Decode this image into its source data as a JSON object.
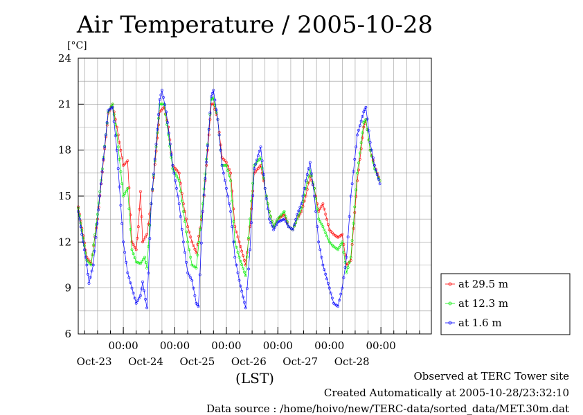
{
  "chart_data": {
    "type": "line",
    "title": "Air Temperature / 2005-10-28",
    "ylabel": "[°C]",
    "xlabel": "(LST)",
    "ylim": [
      6,
      24
    ],
    "yticks": [
      6,
      9,
      12,
      15,
      18,
      21,
      24
    ],
    "xlim": [
      "2005-10-22T03:00",
      "2005-10-28T23:30"
    ],
    "day_labels": [
      "Oct-23",
      "Oct-24",
      "Oct-25",
      "Oct-26",
      "Oct-27",
      "Oct-28"
    ],
    "time_label": "00:00",
    "grid": true,
    "legend_position": "bottom-right outside",
    "series": [
      {
        "name": "at 29.5 m",
        "color": "#ff0000",
        "points": [
          [
            "2005-10-22T03:00",
            14.3
          ],
          [
            "2005-10-22T07:00",
            11.0
          ],
          [
            "2005-10-22T09:00",
            10.6
          ],
          [
            "2005-10-22T12:00",
            13.5
          ],
          [
            "2005-10-22T17:00",
            20.4
          ],
          [
            "2005-10-22T19:00",
            21.0
          ],
          [
            "2005-10-22T21:00",
            19.5
          ],
          [
            "2005-10-23T00:00",
            17.0
          ],
          [
            "2005-10-23T02:00",
            17.3
          ],
          [
            "2005-10-23T04:00",
            12.0
          ],
          [
            "2005-10-23T06:00",
            11.5
          ],
          [
            "2005-10-23T07:00",
            13.0
          ],
          [
            "2005-10-23T08:00",
            15.3
          ],
          [
            "2005-10-23T09:00",
            12.0
          ],
          [
            "2005-10-23T11:00",
            12.5
          ],
          [
            "2005-10-23T13:00",
            14.5
          ],
          [
            "2005-10-23T17:00",
            20.5
          ],
          [
            "2005-10-23T19:00",
            20.8
          ],
          [
            "2005-10-23T21:00",
            19.5
          ],
          [
            "2005-10-23T23:00",
            17.0
          ],
          [
            "2005-10-24T02:00",
            16.5
          ],
          [
            "2005-10-24T04:00",
            14.5
          ],
          [
            "2005-10-24T06:00",
            13.0
          ],
          [
            "2005-10-24T08:00",
            12.0
          ],
          [
            "2005-10-24T10:00",
            11.3
          ],
          [
            "2005-10-24T13:00",
            14.0
          ],
          [
            "2005-10-24T17:00",
            21.0
          ],
          [
            "2005-10-24T18:00",
            21.0
          ],
          [
            "2005-10-24T20:00",
            20.0
          ],
          [
            "2005-10-24T22:00",
            17.5
          ],
          [
            "2005-10-25T00:00",
            17.2
          ],
          [
            "2005-10-25T02:00",
            16.5
          ],
          [
            "2005-10-25T04:00",
            13.0
          ],
          [
            "2005-10-25T06:00",
            12.0
          ],
          [
            "2005-10-25T09:00",
            10.5
          ],
          [
            "2005-10-25T11:00",
            13.0
          ],
          [
            "2005-10-25T13:00",
            16.5
          ],
          [
            "2005-10-25T16:00",
            17.0
          ],
          [
            "2005-10-25T18:00",
            15.5
          ],
          [
            "2005-10-25T20:00",
            14.0
          ],
          [
            "2005-10-25T22:00",
            13.0
          ],
          [
            "2005-10-26T00:00",
            13.5
          ],
          [
            "2005-10-26T03:00",
            13.8
          ],
          [
            "2005-10-26T05:00",
            13.0
          ],
          [
            "2005-10-26T07:00",
            12.8
          ],
          [
            "2005-10-26T09:00",
            13.5
          ],
          [
            "2005-10-26T11:00",
            14.0
          ],
          [
            "2005-10-26T13:00",
            15.0
          ],
          [
            "2005-10-26T15:00",
            16.3
          ],
          [
            "2005-10-26T17:00",
            15.5
          ],
          [
            "2005-10-26T19:00",
            14.0
          ],
          [
            "2005-10-26T21:00",
            14.5
          ],
          [
            "2005-10-27T00:00",
            12.8
          ],
          [
            "2005-10-27T02:00",
            12.5
          ],
          [
            "2005-10-27T04:00",
            12.3
          ],
          [
            "2005-10-27T06:00",
            12.5
          ],
          [
            "2005-10-27T08:00",
            10.5
          ],
          [
            "2005-10-27T10:00",
            10.8
          ],
          [
            "2005-10-27T13:00",
            16.0
          ],
          [
            "2005-10-27T16:00",
            19.5
          ],
          [
            "2005-10-27T17:00",
            20.0
          ],
          [
            "2005-10-27T19:00",
            18.0
          ],
          [
            "2005-10-27T21:00",
            17.0
          ],
          [
            "2005-10-27T23:30",
            16.0
          ]
        ]
      },
      {
        "name": "at 12.3 m",
        "color": "#00ee00",
        "points": [
          [
            "2005-10-22T03:00",
            14.2
          ],
          [
            "2005-10-22T07:00",
            10.8
          ],
          [
            "2005-10-22T09:00",
            10.5
          ],
          [
            "2005-10-22T12:00",
            13.8
          ],
          [
            "2005-10-22T17:00",
            20.5
          ],
          [
            "2005-10-22T19:00",
            21.0
          ],
          [
            "2005-10-22T21:00",
            19.0
          ],
          [
            "2005-10-23T00:00",
            15.0
          ],
          [
            "2005-10-23T02:00",
            15.5
          ],
          [
            "2005-10-23T04:00",
            11.5
          ],
          [
            "2005-10-23T06:00",
            10.7
          ],
          [
            "2005-10-23T08:00",
            10.6
          ],
          [
            "2005-10-23T10:00",
            11.0
          ],
          [
            "2005-10-23T11:00",
            10.3
          ],
          [
            "2005-10-23T13:00",
            14.5
          ],
          [
            "2005-10-23T17:00",
            21.0
          ],
          [
            "2005-10-23T19:00",
            21.0
          ],
          [
            "2005-10-23T21:00",
            19.0
          ],
          [
            "2005-10-23T23:00",
            16.8
          ],
          [
            "2005-10-24T02:00",
            16.0
          ],
          [
            "2005-10-24T04:00",
            14.0
          ],
          [
            "2005-10-24T06:00",
            12.0
          ],
          [
            "2005-10-24T08:00",
            10.5
          ],
          [
            "2005-10-24T10:00",
            10.3
          ],
          [
            "2005-10-24T13:00",
            14.5
          ],
          [
            "2005-10-24T17:00",
            21.3
          ],
          [
            "2005-10-24T18:00",
            21.4
          ],
          [
            "2005-10-24T20:00",
            20.0
          ],
          [
            "2005-10-24T22:00",
            17.0
          ],
          [
            "2005-10-25T00:00",
            17.0
          ],
          [
            "2005-10-25T02:00",
            16.0
          ],
          [
            "2005-10-25T04:00",
            12.0
          ],
          [
            "2005-10-25T06:00",
            11.0
          ],
          [
            "2005-10-25T09:00",
            9.8
          ],
          [
            "2005-10-25T11:00",
            13.5
          ],
          [
            "2005-10-25T13:00",
            17.0
          ],
          [
            "2005-10-25T16:00",
            17.5
          ],
          [
            "2005-10-25T18:00",
            15.5
          ],
          [
            "2005-10-25T20:00",
            14.0
          ],
          [
            "2005-10-25T22:00",
            13.0
          ],
          [
            "2005-10-26T00:00",
            13.5
          ],
          [
            "2005-10-26T03:00",
            14.0
          ],
          [
            "2005-10-26T05:00",
            13.0
          ],
          [
            "2005-10-26T07:00",
            12.8
          ],
          [
            "2005-10-26T09:00",
            13.5
          ],
          [
            "2005-10-26T11:00",
            14.2
          ],
          [
            "2005-10-26T13:00",
            15.5
          ],
          [
            "2005-10-26T15:00",
            16.7
          ],
          [
            "2005-10-26T17:00",
            15.5
          ],
          [
            "2005-10-26T19:00",
            13.5
          ],
          [
            "2005-10-26T21:00",
            13.0
          ],
          [
            "2005-10-27T00:00",
            12.0
          ],
          [
            "2005-10-27T02:00",
            11.7
          ],
          [
            "2005-10-27T04:00",
            11.5
          ],
          [
            "2005-10-27T06:00",
            12.0
          ],
          [
            "2005-10-27T08:00",
            10.0
          ],
          [
            "2005-10-27T10:00",
            11.0
          ],
          [
            "2005-10-27T13:00",
            16.5
          ],
          [
            "2005-10-27T16:00",
            19.8
          ],
          [
            "2005-10-27T17:00",
            20.0
          ],
          [
            "2005-10-27T19:00",
            18.0
          ],
          [
            "2005-10-27T21:00",
            16.8
          ],
          [
            "2005-10-27T23:30",
            16.0
          ]
        ]
      },
      {
        "name": "at 1.6 m",
        "color": "#0000ff",
        "points": [
          [
            "2005-10-22T03:00",
            14.0
          ],
          [
            "2005-10-22T07:00",
            10.5
          ],
          [
            "2005-10-22T08:00",
            9.3
          ],
          [
            "2005-10-22T10:00",
            10.5
          ],
          [
            "2005-10-22T13:00",
            15.0
          ],
          [
            "2005-10-22T17:00",
            20.6
          ],
          [
            "2005-10-22T19:00",
            20.8
          ],
          [
            "2005-10-22T21:00",
            18.0
          ],
          [
            "2005-10-23T00:00",
            12.0
          ],
          [
            "2005-10-23T02:00",
            10.0
          ],
          [
            "2005-10-23T04:00",
            9.0
          ],
          [
            "2005-10-23T06:00",
            8.0
          ],
          [
            "2005-10-23T08:00",
            8.5
          ],
          [
            "2005-10-23T09:00",
            9.4
          ],
          [
            "2005-10-23T11:00",
            7.7
          ],
          [
            "2005-10-23T13:00",
            14.5
          ],
          [
            "2005-10-23T17:00",
            21.3
          ],
          [
            "2005-10-23T18:00",
            21.9
          ],
          [
            "2005-10-23T20:00",
            20.5
          ],
          [
            "2005-10-23T23:00",
            17.0
          ],
          [
            "2005-10-24T02:00",
            14.5
          ],
          [
            "2005-10-24T04:00",
            12.0
          ],
          [
            "2005-10-24T06:00",
            10.0
          ],
          [
            "2005-10-24T08:00",
            9.5
          ],
          [
            "2005-10-24T10:00",
            8.0
          ],
          [
            "2005-10-24T11:00",
            7.8
          ],
          [
            "2005-10-24T13:00",
            14.0
          ],
          [
            "2005-10-24T17:00",
            21.5
          ],
          [
            "2005-10-24T18:00",
            21.9
          ],
          [
            "2005-10-24T20:00",
            20.0
          ],
          [
            "2005-10-24T22:00",
            17.0
          ],
          [
            "2005-10-25T00:00",
            15.5
          ],
          [
            "2005-10-25T02:00",
            14.0
          ],
          [
            "2005-10-25T04:00",
            11.0
          ],
          [
            "2005-10-25T06:00",
            9.5
          ],
          [
            "2005-10-25T09:00",
            7.7
          ],
          [
            "2005-10-25T11:00",
            11.5
          ],
          [
            "2005-10-25T13:00",
            16.8
          ],
          [
            "2005-10-25T16:00",
            18.2
          ],
          [
            "2005-10-25T18:00",
            15.5
          ],
          [
            "2005-10-25T20:00",
            13.5
          ],
          [
            "2005-10-25T22:00",
            12.8
          ],
          [
            "2005-10-26T00:00",
            13.3
          ],
          [
            "2005-10-26T03:00",
            13.5
          ],
          [
            "2005-10-26T05:00",
            13.0
          ],
          [
            "2005-10-26T07:00",
            12.8
          ],
          [
            "2005-10-26T09:00",
            13.8
          ],
          [
            "2005-10-26T11:00",
            14.5
          ],
          [
            "2005-10-26T13:00",
            16.0
          ],
          [
            "2005-10-26T15:00",
            17.2
          ],
          [
            "2005-10-26T17:00",
            15.0
          ],
          [
            "2005-10-26T19:00",
            12.0
          ],
          [
            "2005-10-26T21:00",
            10.5
          ],
          [
            "2005-10-27T00:00",
            9.0
          ],
          [
            "2005-10-27T02:00",
            8.0
          ],
          [
            "2005-10-27T04:00",
            7.8
          ],
          [
            "2005-10-27T06:00",
            9.0
          ],
          [
            "2005-10-27T08:00",
            11.0
          ],
          [
            "2005-10-27T10:00",
            15.0
          ],
          [
            "2005-10-27T13:00",
            19.0
          ],
          [
            "2005-10-27T16:00",
            20.5
          ],
          [
            "2005-10-27T17:00",
            20.8
          ],
          [
            "2005-10-27T19:00",
            18.5
          ],
          [
            "2005-10-27T21:00",
            17.0
          ],
          [
            "2005-10-27T23:30",
            15.8
          ]
        ]
      }
    ]
  },
  "footer": {
    "line1": "Observed at TERC Tower site",
    "line2": "Created Automatically at 2005-10-28/23:32:10",
    "line3": "Data source : /home/hoivo/new/TERC-data/sorted_data/MET.30m.dat"
  }
}
